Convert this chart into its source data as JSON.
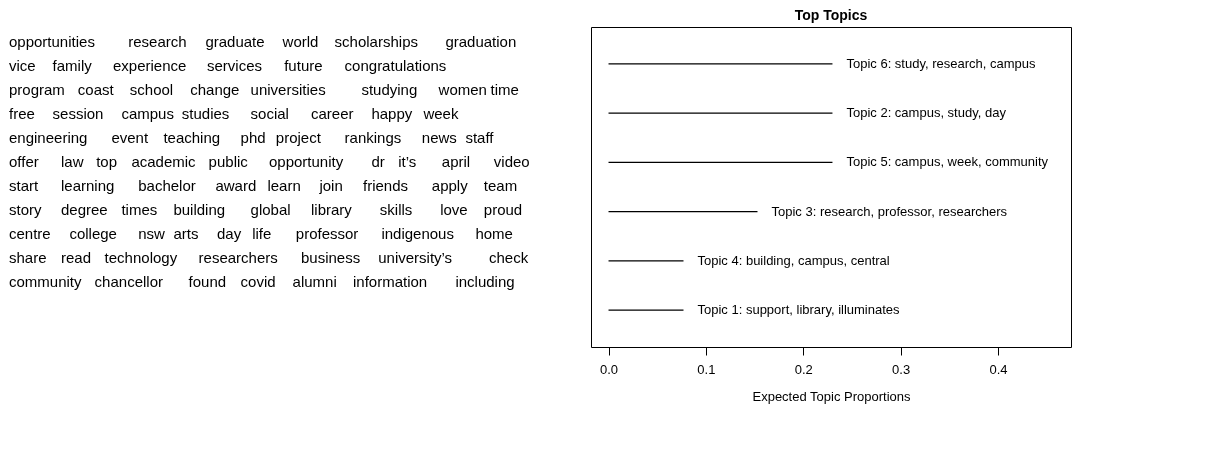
{
  "chart_data": [
    {
      "type": "other",
      "annotations": [
        "opportunities",
        "research",
        "graduate",
        "world",
        "scholarships",
        "graduation",
        "vice",
        "family",
        "experience",
        "services",
        "future",
        "congratulations",
        "program",
        "coast",
        "school",
        "change",
        "universities",
        "studying",
        "women",
        "time",
        "free",
        "session",
        "campus",
        "studies",
        "social",
        "career",
        "happy",
        "week",
        "engineering",
        "event",
        "teaching",
        "phd",
        "project",
        "rankings",
        "news",
        "staff",
        "offer",
        "law",
        "top",
        "academic",
        "public",
        "opportunity",
        "dr",
        "it’s",
        "april",
        "video",
        "start",
        "learning",
        "bachelor",
        "award",
        "learn",
        "join",
        "friends",
        "apply",
        "team",
        "story",
        "degree",
        "times",
        "building",
        "global",
        "library",
        "skills",
        "love",
        "proud",
        "centre",
        "college",
        "nsw",
        "arts",
        "day",
        "life",
        "professor",
        "indigenous",
        "home",
        "share",
        "read",
        "technology",
        "researchers",
        "business",
        "university’s",
        "check",
        "community",
        "chancellor",
        "found",
        "covid",
        "alumni",
        "information",
        "including"
      ]
    },
    {
      "type": "bar",
      "orientation": "horizontal",
      "title": "Top Topics",
      "xlabel": "Expected Topic Proportions",
      "categories": [
        "Topic 6: study, research, campus",
        "Topic 2: campus, study, day",
        "Topic 5: campus, week, community",
        "Topic 3: research, professor, researchers",
        "Topic 4: building, campus, central",
        "Topic 1: support, library, illuminates"
      ],
      "values": [
        0.23,
        0.23,
        0.23,
        0.153,
        0.077,
        0.077
      ],
      "color": "#000000",
      "xlim": [
        -0.018,
        0.475
      ],
      "xticks": [
        {
          "value": 0,
          "label": "0.0"
        },
        0.1,
        0.2,
        0.3,
        0.4
      ],
      "grid": false
    }
  ]
}
